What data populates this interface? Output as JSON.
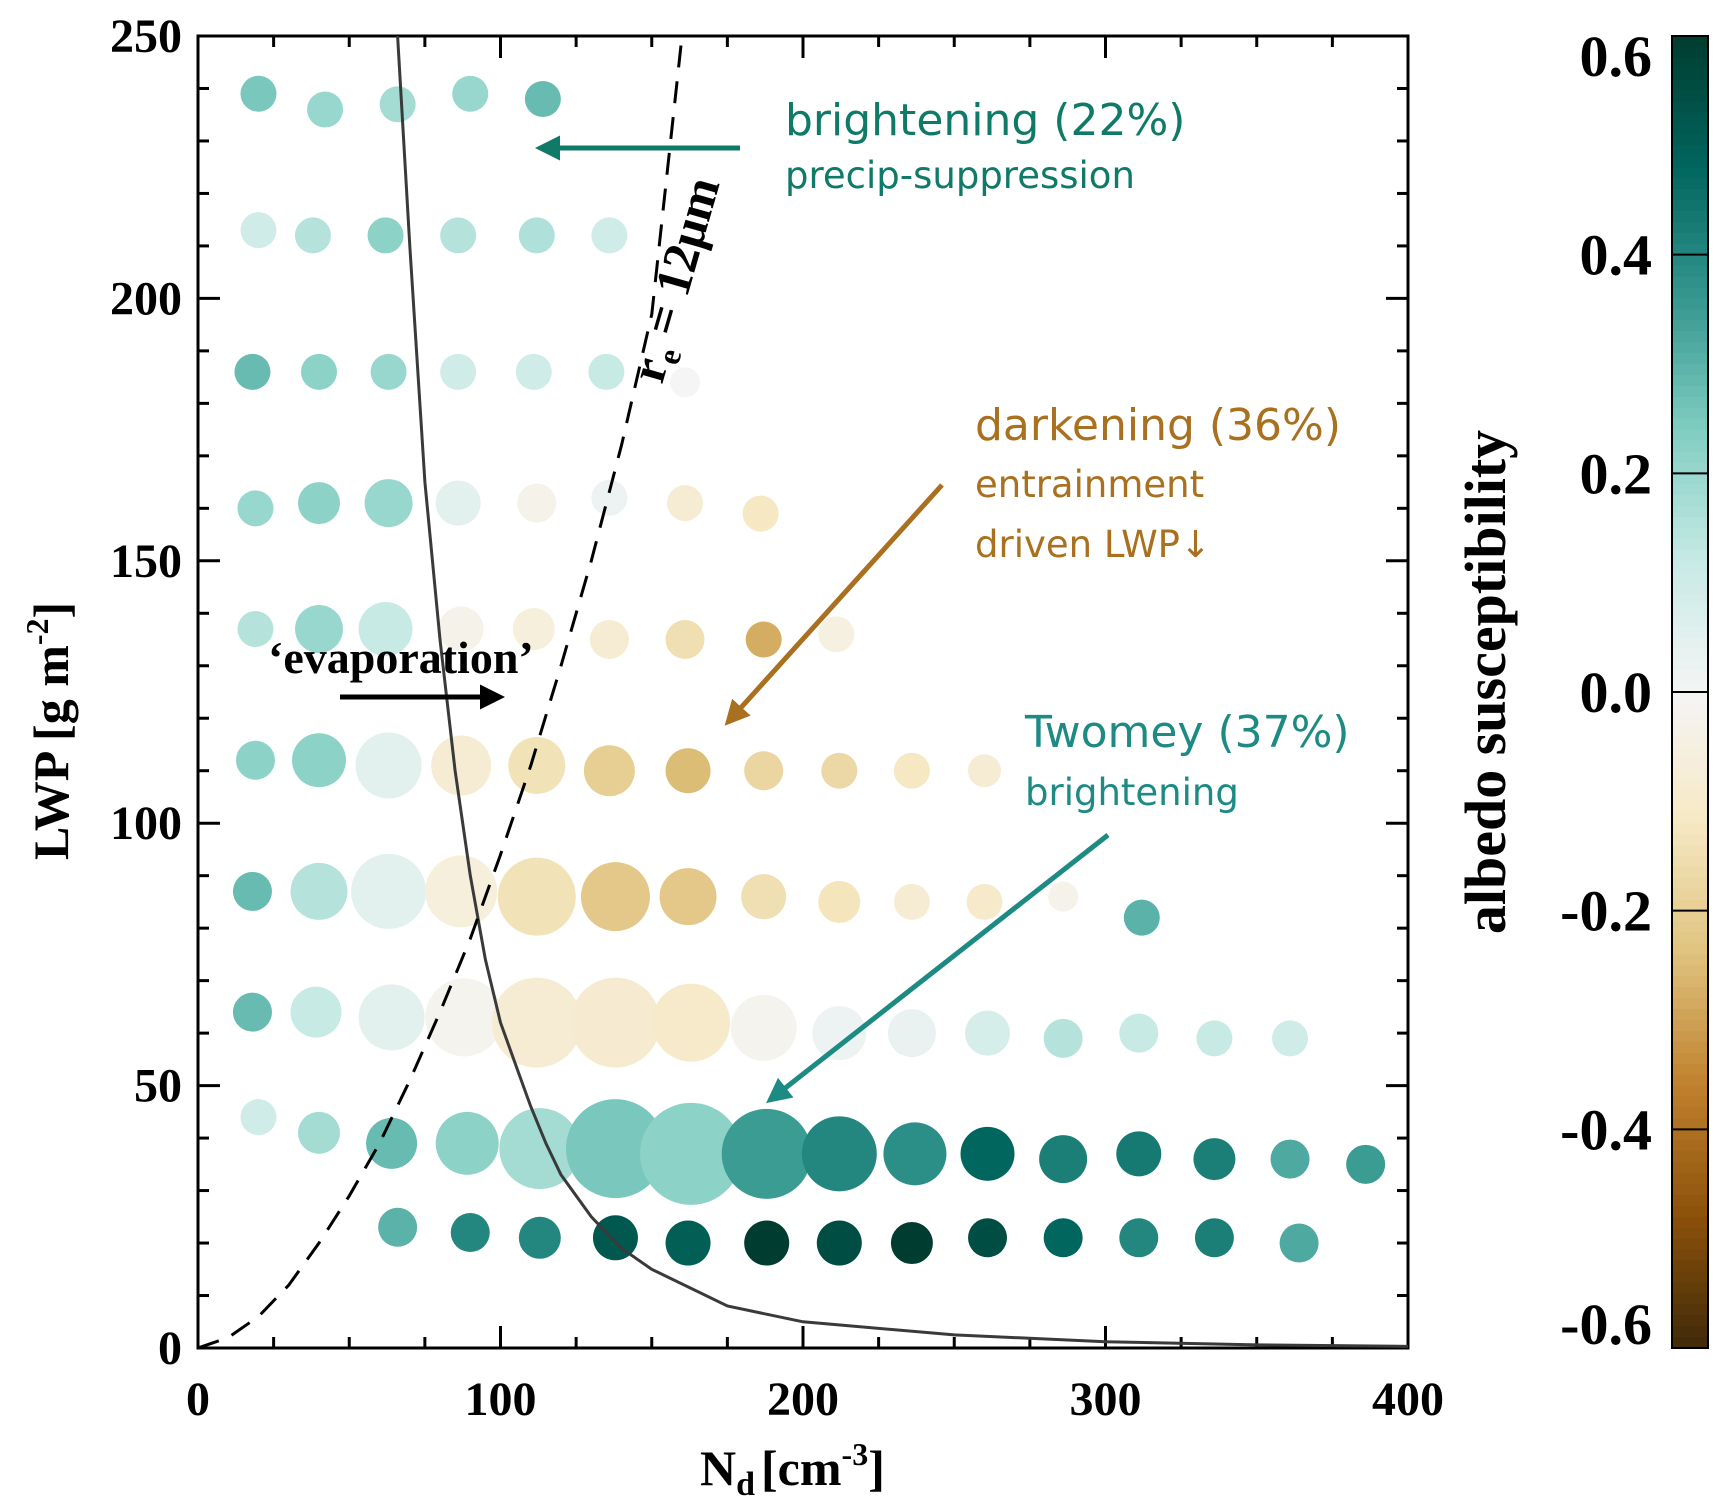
{
  "chart_data": {
    "type": "scatter",
    "xlabel": "N",
    "xlabel_sub": "d",
    "xlabel_unit": "[cm",
    "xlabel_unit_sup": "-3",
    "xlabel_unit_end": "]",
    "ylabel": "LWP [g m",
    "ylabel_sup": "-2",
    "ylabel_end": "]",
    "xlim": [
      0,
      400
    ],
    "ylim": [
      0,
      250
    ],
    "xticks": [
      "0",
      "100",
      "200",
      "300",
      "400"
    ],
    "yticks": [
      "0",
      "50",
      "100",
      "150",
      "200",
      "250"
    ],
    "xtick_values": [
      0,
      100,
      200,
      300,
      400
    ],
    "ytick_values": [
      0,
      50,
      100,
      150,
      200,
      250
    ],
    "colorbar": {
      "title": "albedo susceptibility",
      "range": [
        -0.6,
        0.6
      ],
      "ticks": [
        "0.6",
        "0.4",
        "0.2",
        "0.0",
        "-0.2",
        "-0.4",
        "-0.6"
      ],
      "tick_values": [
        0.6,
        0.4,
        0.2,
        0.0,
        -0.2,
        -0.4,
        -0.6
      ],
      "colors": [
        "#3f2a09",
        "#8c510a",
        "#bf812d",
        "#dfc27d",
        "#f6e8c3",
        "#f5f5f5",
        "#c7eae5",
        "#80cdc1",
        "#35978f",
        "#01665e",
        "#003c30"
      ]
    },
    "points": [
      {
        "x": 20,
        "y": 239,
        "v": 0.25,
        "s": 1.2
      },
      {
        "x": 42,
        "y": 236,
        "v": 0.2,
        "s": 1.2
      },
      {
        "x": 66,
        "y": 237,
        "v": 0.18,
        "s": 1.2
      },
      {
        "x": 90,
        "y": 239,
        "v": 0.2,
        "s": 1.2
      },
      {
        "x": 114,
        "y": 238,
        "v": 0.28,
        "s": 1.2
      },
      {
        "x": 20,
        "y": 213,
        "v": 0.1,
        "s": 1.2
      },
      {
        "x": 38,
        "y": 212,
        "v": 0.15,
        "s": 1.2
      },
      {
        "x": 62,
        "y": 212,
        "v": 0.22,
        "s": 1.2
      },
      {
        "x": 86,
        "y": 212,
        "v": 0.15,
        "s": 1.2
      },
      {
        "x": 112,
        "y": 212,
        "v": 0.16,
        "s": 1.2
      },
      {
        "x": 136,
        "y": 212,
        "v": 0.1,
        "s": 1.2
      },
      {
        "x": 18,
        "y": 186,
        "v": 0.28,
        "s": 1.2
      },
      {
        "x": 40,
        "y": 186,
        "v": 0.22,
        "s": 1.2
      },
      {
        "x": 63,
        "y": 186,
        "v": 0.2,
        "s": 1.2
      },
      {
        "x": 86,
        "y": 186,
        "v": 0.1,
        "s": 1.2
      },
      {
        "x": 111,
        "y": 186,
        "v": 0.1,
        "s": 1.2
      },
      {
        "x": 135,
        "y": 186,
        "v": 0.12,
        "s": 1.2
      },
      {
        "x": 161,
        "y": 184,
        "v": 0.0,
        "s": 1.0
      },
      {
        "x": 19,
        "y": 160,
        "v": 0.2,
        "s": 1.2
      },
      {
        "x": 40,
        "y": 161,
        "v": 0.22,
        "s": 1.4
      },
      {
        "x": 63,
        "y": 161,
        "v": 0.2,
        "s": 1.6
      },
      {
        "x": 86,
        "y": 161,
        "v": 0.05,
        "s": 1.5
      },
      {
        "x": 112,
        "y": 161,
        "v": -0.03,
        "s": 1.3
      },
      {
        "x": 136,
        "y": 162,
        "v": 0.02,
        "s": 1.2
      },
      {
        "x": 161,
        "y": 161,
        "v": -0.08,
        "s": 1.2
      },
      {
        "x": 186,
        "y": 159,
        "v": -0.12,
        "s": 1.2
      },
      {
        "x": 19,
        "y": 137,
        "v": 0.15,
        "s": 1.2
      },
      {
        "x": 40,
        "y": 137,
        "v": 0.2,
        "s": 1.6
      },
      {
        "x": 62,
        "y": 137,
        "v": 0.12,
        "s": 1.8
      },
      {
        "x": 87,
        "y": 137,
        "v": -0.03,
        "s": 1.5
      },
      {
        "x": 111,
        "y": 137,
        "v": -0.06,
        "s": 1.4
      },
      {
        "x": 136,
        "y": 135,
        "v": -0.08,
        "s": 1.3
      },
      {
        "x": 161,
        "y": 135,
        "v": -0.15,
        "s": 1.3
      },
      {
        "x": 187,
        "y": 135,
        "v": -0.28,
        "s": 1.2
      },
      {
        "x": 211,
        "y": 136,
        "v": -0.05,
        "s": 1.2
      },
      {
        "x": 19,
        "y": 112,
        "v": 0.22,
        "s": 1.3
      },
      {
        "x": 40,
        "y": 112,
        "v": 0.22,
        "s": 1.8
      },
      {
        "x": 63,
        "y": 111,
        "v": 0.05,
        "s": 2.2
      },
      {
        "x": 87,
        "y": 111,
        "v": -0.08,
        "s": 2.0
      },
      {
        "x": 112,
        "y": 111,
        "v": -0.14,
        "s": 1.9
      },
      {
        "x": 136,
        "y": 110,
        "v": -0.2,
        "s": 1.7
      },
      {
        "x": 162,
        "y": 110,
        "v": -0.25,
        "s": 1.5
      },
      {
        "x": 187,
        "y": 110,
        "v": -0.18,
        "s": 1.3
      },
      {
        "x": 212,
        "y": 110,
        "v": -0.17,
        "s": 1.2
      },
      {
        "x": 236,
        "y": 110,
        "v": -0.12,
        "s": 1.2
      },
      {
        "x": 260,
        "y": 110,
        "v": -0.08,
        "s": 1.1
      },
      {
        "x": 18,
        "y": 87,
        "v": 0.28,
        "s": 1.3
      },
      {
        "x": 40,
        "y": 87,
        "v": 0.15,
        "s": 1.9
      },
      {
        "x": 63,
        "y": 87,
        "v": 0.05,
        "s": 2.5
      },
      {
        "x": 87,
        "y": 87,
        "v": -0.06,
        "s": 2.4
      },
      {
        "x": 112,
        "y": 86,
        "v": -0.14,
        "s": 2.6
      },
      {
        "x": 138,
        "y": 86,
        "v": -0.22,
        "s": 2.3
      },
      {
        "x": 162,
        "y": 86,
        "v": -0.22,
        "s": 1.9
      },
      {
        "x": 187,
        "y": 86,
        "v": -0.15,
        "s": 1.5
      },
      {
        "x": 212,
        "y": 85,
        "v": -0.13,
        "s": 1.4
      },
      {
        "x": 236,
        "y": 85,
        "v": -0.08,
        "s": 1.2
      },
      {
        "x": 260,
        "y": 85,
        "v": -0.1,
        "s": 1.2
      },
      {
        "x": 286,
        "y": 86,
        "v": -0.03,
        "s": 1.0
      },
      {
        "x": 312,
        "y": 82,
        "v": 0.3,
        "s": 1.2
      },
      {
        "x": 18,
        "y": 64,
        "v": 0.28,
        "s": 1.3
      },
      {
        "x": 39,
        "y": 64,
        "v": 0.12,
        "s": 1.7
      },
      {
        "x": 64,
        "y": 63,
        "v": 0.05,
        "s": 2.2
      },
      {
        "x": 88,
        "y": 63,
        "v": -0.02,
        "s": 2.6
      },
      {
        "x": 112,
        "y": 62,
        "v": -0.08,
        "s": 3.0
      },
      {
        "x": 138,
        "y": 62,
        "v": -0.09,
        "s": 3.0
      },
      {
        "x": 163,
        "y": 62,
        "v": -0.1,
        "s": 2.6
      },
      {
        "x": 187,
        "y": 61,
        "v": -0.02,
        "s": 2.2
      },
      {
        "x": 212,
        "y": 60,
        "v": 0.02,
        "s": 1.8
      },
      {
        "x": 236,
        "y": 60,
        "v": 0.03,
        "s": 1.6
      },
      {
        "x": 261,
        "y": 60,
        "v": 0.08,
        "s": 1.5
      },
      {
        "x": 286,
        "y": 59,
        "v": 0.15,
        "s": 1.3
      },
      {
        "x": 311,
        "y": 60,
        "v": 0.12,
        "s": 1.3
      },
      {
        "x": 336,
        "y": 59,
        "v": 0.12,
        "s": 1.2
      },
      {
        "x": 361,
        "y": 59,
        "v": 0.1,
        "s": 1.2
      },
      {
        "x": 20,
        "y": 44,
        "v": 0.1,
        "s": 1.2
      },
      {
        "x": 40,
        "y": 41,
        "v": 0.18,
        "s": 1.4
      },
      {
        "x": 64,
        "y": 39,
        "v": 0.28,
        "s": 1.7
      },
      {
        "x": 89,
        "y": 39,
        "v": 0.22,
        "s": 2.1
      },
      {
        "x": 113,
        "y": 38,
        "v": 0.18,
        "s": 2.7
      },
      {
        "x": 138,
        "y": 38,
        "v": 0.25,
        "s": 3.3
      },
      {
        "x": 163,
        "y": 37,
        "v": 0.22,
        "s": 3.4
      },
      {
        "x": 188,
        "y": 37,
        "v": 0.35,
        "s": 3.0
      },
      {
        "x": 212,
        "y": 37,
        "v": 0.4,
        "s": 2.5
      },
      {
        "x": 237,
        "y": 37,
        "v": 0.38,
        "s": 2.1
      },
      {
        "x": 261,
        "y": 37,
        "v": 0.48,
        "s": 1.8
      },
      {
        "x": 286,
        "y": 36,
        "v": 0.42,
        "s": 1.6
      },
      {
        "x": 311,
        "y": 37,
        "v": 0.43,
        "s": 1.5
      },
      {
        "x": 336,
        "y": 36,
        "v": 0.42,
        "s": 1.4
      },
      {
        "x": 361,
        "y": 36,
        "v": 0.32,
        "s": 1.3
      },
      {
        "x": 386,
        "y": 35,
        "v": 0.35,
        "s": 1.3
      },
      {
        "x": 66,
        "y": 23,
        "v": 0.3,
        "s": 1.3
      },
      {
        "x": 90,
        "y": 22,
        "v": 0.4,
        "s": 1.3
      },
      {
        "x": 113,
        "y": 21,
        "v": 0.4,
        "s": 1.4
      },
      {
        "x": 138,
        "y": 21,
        "v": 0.52,
        "s": 1.5
      },
      {
        "x": 162,
        "y": 20,
        "v": 0.5,
        "s": 1.5
      },
      {
        "x": 188,
        "y": 20,
        "v": 0.6,
        "s": 1.5
      },
      {
        "x": 212,
        "y": 20,
        "v": 0.55,
        "s": 1.5
      },
      {
        "x": 236,
        "y": 20,
        "v": 0.6,
        "s": 1.4
      },
      {
        "x": 261,
        "y": 21,
        "v": 0.55,
        "s": 1.3
      },
      {
        "x": 286,
        "y": 21,
        "v": 0.48,
        "s": 1.3
      },
      {
        "x": 311,
        "y": 21,
        "v": 0.4,
        "s": 1.3
      },
      {
        "x": 336,
        "y": 21,
        "v": 0.42,
        "s": 1.3
      },
      {
        "x": 364,
        "y": 20,
        "v": 0.32,
        "s": 1.3
      }
    ],
    "solid_curve": {
      "x": [
        66,
        70,
        75,
        80,
        85,
        90,
        95,
        100,
        105,
        110,
        115,
        120,
        130,
        140,
        150,
        175,
        200,
        250,
        300,
        350,
        400
      ],
      "y": [
        250,
        210,
        165,
        135,
        110,
        90,
        74,
        62,
        54,
        46,
        39,
        33,
        25,
        19,
        15,
        8,
        5,
        2.5,
        1.2,
        0.6,
        0.3
      ]
    },
    "dashed_curve": {
      "x": [
        0,
        10,
        20,
        30,
        40,
        50,
        60,
        70,
        80,
        90,
        100,
        110,
        120,
        130,
        140,
        150,
        160
      ],
      "y": [
        0,
        2,
        6,
        12,
        20,
        29,
        39,
        51,
        64,
        78,
        94,
        111,
        130,
        150,
        172,
        197,
        250
      ]
    },
    "annotations": {
      "re_label": "r",
      "re_sub": "e",
      "re_value": " = 12μm",
      "evaporation": "‘evaporation’",
      "brightening_title": "brightening (22%)",
      "brightening_sub": "precip-suppression",
      "darkening_title": "darkening (36%)",
      "darkening_sub1": "entrainment",
      "darkening_sub2": "driven LWP↓",
      "twomey_title": "Twomey (37%)",
      "twomey_sub": "brightening",
      "color_teal_dark": "#0f7a68",
      "color_teal": "#1d8a83",
      "color_brown": "#a8701f"
    }
  }
}
